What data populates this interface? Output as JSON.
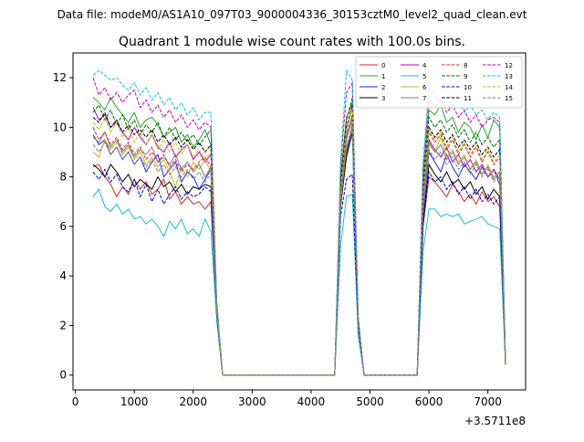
{
  "figure": {
    "suptitle": "Data file: modeM0/AS1A10_097T03_9000004336_30153cztM0_level2_quad_clean.evt",
    "offset_label": "+3.5711e8"
  },
  "chart_data": {
    "type": "line",
    "title": "Quadrant 1 module wise count rates with 100.0s bins.",
    "xlabel": "",
    "ylabel": "",
    "xlim": [
      -40,
      7640
    ],
    "ylim": [
      -0.6,
      13.0
    ],
    "xticks": [
      0,
      1000,
      2000,
      3000,
      4000,
      5000,
      6000,
      7000
    ],
    "yticks": [
      0,
      2,
      4,
      6,
      8,
      10,
      12
    ],
    "grid": false,
    "legend": {
      "placement": "top-right",
      "columns": 4
    },
    "x": [
      300,
      400,
      500,
      600,
      700,
      800,
      900,
      1000,
      1100,
      1200,
      1300,
      1400,
      1500,
      1600,
      1700,
      1800,
      1900,
      2000,
      2100,
      2200,
      2300,
      2400,
      2500,
      2600,
      2700,
      2800,
      2900,
      3000,
      3100,
      3200,
      3300,
      3400,
      3500,
      3600,
      3700,
      3800,
      3900,
      4000,
      4100,
      4200,
      4300,
      4400,
      4500,
      4600,
      4700,
      4800,
      4900,
      5000,
      5100,
      5200,
      5300,
      5400,
      5500,
      5600,
      5700,
      5800,
      5900,
      6000,
      6100,
      6200,
      6300,
      6400,
      6500,
      6600,
      6700,
      6800,
      6900,
      7000,
      7100,
      7200,
      7300
    ],
    "series": [
      {
        "name": "0",
        "color": "#d62728",
        "dash": "solid",
        "values": [
          8.4,
          8.5,
          8.0,
          7.7,
          7.2,
          7.6,
          7.3,
          7.9,
          7.5,
          7.8,
          7.3,
          7.5,
          7.9,
          7.1,
          7.4,
          6.9,
          7.2,
          6.9,
          7.0,
          6.7,
          7.0,
          2.4,
          0,
          0,
          0,
          0,
          0,
          0,
          0,
          0,
          0,
          0,
          0,
          0,
          0,
          0,
          0,
          0,
          0,
          0,
          0,
          0,
          7.3,
          8.9,
          10.2,
          2.0,
          0,
          0,
          0,
          0,
          0,
          0,
          0,
          0,
          0,
          0,
          6.0,
          8.0,
          7.8,
          7.5,
          7.2,
          7.7,
          7.4,
          7.0,
          7.3,
          6.9,
          7.4,
          7.0,
          7.2,
          6.8,
          0.5
        ]
      },
      {
        "name": "1",
        "color": "#2ca02c",
        "dash": "solid",
        "values": [
          11.2,
          11.0,
          10.7,
          11.2,
          10.8,
          10.5,
          10.2,
          10.6,
          10.0,
          10.3,
          10.4,
          10.1,
          9.6,
          9.8,
          10.0,
          9.4,
          9.7,
          9.2,
          9.5,
          9.9,
          9.3,
          2.8,
          0,
          0,
          0,
          0,
          0,
          0,
          0,
          0,
          0,
          0,
          0,
          0,
          0,
          0,
          0,
          0,
          0,
          0,
          0,
          0,
          8.0,
          10.4,
          11.0,
          2.1,
          0,
          0,
          0,
          0,
          0,
          0,
          0,
          0,
          0,
          0,
          8.0,
          10.7,
          10.5,
          10.9,
          10.2,
          10.4,
          9.8,
          10.2,
          10.0,
          9.5,
          10.1,
          9.6,
          10.3,
          10.0,
          0.5
        ]
      },
      {
        "name": "2",
        "color": "#1f1fff",
        "dash": "solid",
        "values": [
          9.7,
          9.3,
          9.5,
          8.9,
          9.2,
          8.7,
          9.0,
          8.5,
          8.8,
          8.2,
          8.6,
          8.9,
          8.0,
          8.3,
          8.6,
          7.8,
          8.2,
          8.0,
          7.5,
          7.9,
          8.3,
          2.5,
          0,
          0,
          0,
          0,
          0,
          0,
          0,
          0,
          0,
          0,
          0,
          0,
          0,
          0,
          0,
          0,
          0,
          0,
          0,
          0,
          6.8,
          9.0,
          10.0,
          2.0,
          0,
          0,
          0,
          0,
          0,
          0,
          0,
          0,
          0,
          0,
          6.6,
          9.0,
          8.6,
          8.2,
          8.9,
          8.4,
          8.0,
          8.5,
          8.2,
          7.9,
          8.4,
          8.0,
          8.3,
          7.7,
          0.4
        ]
      },
      {
        "name": "3",
        "color": "#000000",
        "dash": "solid",
        "values": [
          8.5,
          8.3,
          8.0,
          8.5,
          8.2,
          7.8,
          8.1,
          7.6,
          7.9,
          7.7,
          7.5,
          8.0,
          7.6,
          7.8,
          7.4,
          7.7,
          7.3,
          7.6,
          7.5,
          7.7,
          7.6,
          2.4,
          0,
          0,
          0,
          0,
          0,
          0,
          0,
          0,
          0,
          0,
          0,
          0,
          0,
          0,
          0,
          0,
          0,
          0,
          0,
          0,
          6.8,
          8.8,
          9.8,
          2.0,
          0,
          0,
          0,
          0,
          0,
          0,
          0,
          0,
          0,
          0,
          6.2,
          8.5,
          8.1,
          7.8,
          8.2,
          7.7,
          7.9,
          7.5,
          7.8,
          7.3,
          7.6,
          7.1,
          7.5,
          7.2,
          0.4
        ]
      },
      {
        "name": "4",
        "color": "#bf00bf",
        "dash": "solid",
        "values": [
          10.8,
          10.3,
          10.5,
          10.0,
          10.2,
          9.8,
          9.5,
          10.0,
          9.6,
          9.3,
          9.7,
          9.2,
          9.0,
          9.4,
          8.8,
          9.1,
          9.3,
          8.7,
          9.0,
          8.6,
          8.9,
          2.6,
          0,
          0,
          0,
          0,
          0,
          0,
          0,
          0,
          0,
          0,
          0,
          0,
          0,
          0,
          0,
          0,
          0,
          0,
          0,
          0,
          7.3,
          9.6,
          10.5,
          2.0,
          0,
          0,
          0,
          0,
          0,
          0,
          0,
          0,
          0,
          0,
          7.0,
          9.5,
          9.1,
          8.8,
          9.2,
          8.6,
          8.9,
          8.4,
          8.7,
          8.2,
          8.5,
          8.0,
          8.3,
          7.9,
          0.4
        ]
      },
      {
        "name": "5",
        "color": "#17becf",
        "dash": "solid",
        "values": [
          7.2,
          7.5,
          6.8,
          6.6,
          6.9,
          6.5,
          6.7,
          6.3,
          6.4,
          6.1,
          6.3,
          6.0,
          5.6,
          6.2,
          5.9,
          6.3,
          5.7,
          5.9,
          5.6,
          6.3,
          5.8,
          2.2,
          0,
          0,
          0,
          0,
          0,
          0,
          0,
          0,
          0,
          0,
          0,
          0,
          0,
          0,
          0,
          0,
          0,
          0,
          0,
          0,
          5.2,
          7.2,
          7.3,
          1.6,
          0,
          0,
          0,
          0,
          0,
          0,
          0,
          0,
          0,
          0,
          5.0,
          6.7,
          6.7,
          6.4,
          6.5,
          6.4,
          6.5,
          6.1,
          6.2,
          6.3,
          6.4,
          6.1,
          6.0,
          5.9,
          0.4
        ]
      },
      {
        "name": "6",
        "color": "#bcbd22",
        "dash": "solid",
        "values": [
          9.0,
          8.8,
          9.5,
          9.1,
          9.4,
          8.9,
          9.2,
          8.7,
          9.0,
          8.5,
          8.8,
          8.4,
          8.7,
          8.2,
          7.6,
          8.4,
          8.0,
          8.6,
          8.3,
          8.7,
          8.2,
          2.5,
          0,
          0,
          0,
          0,
          0,
          0,
          0,
          0,
          0,
          0,
          0,
          0,
          0,
          0,
          0,
          0,
          0,
          0,
          0,
          0,
          7.0,
          9.2,
          10.0,
          2.0,
          0,
          0,
          0,
          0,
          0,
          0,
          0,
          0,
          0,
          0,
          6.8,
          9.3,
          9.0,
          9.6,
          8.8,
          9.1,
          8.6,
          8.9,
          8.3,
          8.7,
          8.1,
          8.5,
          8.0,
          8.2,
          0.4
        ]
      },
      {
        "name": "7",
        "color": "#7f7f7f",
        "dash": "solid",
        "values": [
          9.6,
          9.4,
          9.8,
          9.2,
          9.5,
          9.0,
          9.3,
          8.8,
          9.1,
          8.9,
          9.2,
          8.6,
          8.8,
          8.5,
          8.9,
          8.3,
          8.6,
          8.2,
          8.5,
          8.0,
          8.4,
          2.5,
          0,
          0,
          0,
          0,
          0,
          0,
          0,
          0,
          0,
          0,
          0,
          0,
          0,
          0,
          0,
          0,
          0,
          0,
          0,
          0,
          7.2,
          9.5,
          10.4,
          2.0,
          0,
          0,
          0,
          0,
          0,
          0,
          0,
          0,
          0,
          0,
          6.9,
          9.4,
          9.0,
          9.3,
          8.7,
          9.0,
          8.5,
          8.8,
          8.3,
          8.6,
          8.1,
          8.4,
          7.9,
          8.2,
          0.4
        ]
      },
      {
        "name": "8",
        "color": "#d62728",
        "dash": "dashed",
        "values": [
          10.0,
          9.5,
          9.8,
          9.3,
          9.6,
          9.1,
          9.4,
          8.9,
          9.2,
          8.7,
          9.0,
          8.6,
          8.9,
          8.4,
          8.7,
          8.2,
          8.5,
          8.3,
          8.6,
          8.8,
          8.4,
          2.6,
          0,
          0,
          0,
          0,
          0,
          0,
          0,
          0,
          0,
          0,
          0,
          0,
          0,
          0,
          0,
          0,
          0,
          0,
          0,
          0,
          7.4,
          9.8,
          10.9,
          2.1,
          0,
          0,
          0,
          0,
          0,
          0,
          0,
          0,
          0,
          0,
          7.2,
          9.8,
          9.4,
          9.7,
          9.1,
          9.5,
          8.9,
          9.3,
          8.8,
          9.2,
          8.6,
          9.0,
          8.5,
          8.8,
          0.4
        ]
      },
      {
        "name": "9",
        "color": "#006400",
        "dash": "dashed",
        "values": [
          10.6,
          10.9,
          10.3,
          10.7,
          10.1,
          10.5,
          9.9,
          10.3,
          9.7,
          10.1,
          9.8,
          10.2,
          9.6,
          10.0,
          9.5,
          9.8,
          9.4,
          9.7,
          9.3,
          9.6,
          9.9,
          2.8,
          0,
          0,
          0,
          0,
          0,
          0,
          0,
          0,
          0,
          0,
          0,
          0,
          0,
          0,
          0,
          0,
          0,
          0,
          0,
          0,
          7.9,
          10.3,
          11.2,
          2.1,
          0,
          0,
          0,
          0,
          0,
          0,
          0,
          0,
          0,
          0,
          7.7,
          10.4,
          10.0,
          10.3,
          9.8,
          10.1,
          9.6,
          9.9,
          9.4,
          9.8,
          9.3,
          9.6,
          9.2,
          9.5,
          0.5
        ]
      },
      {
        "name": "10",
        "color": "#0000cd",
        "dash": "dashed",
        "values": [
          8.2,
          7.9,
          8.3,
          7.8,
          8.1,
          7.6,
          7.4,
          7.9,
          7.2,
          7.7,
          7.0,
          7.5,
          6.9,
          7.3,
          7.6,
          7.1,
          7.4,
          7.2,
          7.3,
          7.6,
          7.4,
          2.3,
          0,
          0,
          0,
          0,
          0,
          0,
          0,
          0,
          0,
          0,
          0,
          0,
          0,
          0,
          0,
          0,
          0,
          0,
          0,
          0,
          6.4,
          7.9,
          8.1,
          1.8,
          0,
          0,
          0,
          0,
          0,
          0,
          0,
          0,
          0,
          0,
          6.0,
          8.2,
          7.8,
          8.0,
          7.5,
          7.8,
          7.3,
          7.6,
          7.1,
          7.5,
          7.0,
          7.3,
          6.9,
          7.2,
          0.4
        ]
      },
      {
        "name": "11",
        "color": "#000000",
        "dash": "dashed",
        "values": [
          10.4,
          10.2,
          10.6,
          10.0,
          10.3,
          9.8,
          10.1,
          9.7,
          9.9,
          9.6,
          9.9,
          9.4,
          9.7,
          9.3,
          9.6,
          9.2,
          9.5,
          9.1,
          9.4,
          9.0,
          9.3,
          2.7,
          0,
          0,
          0,
          0,
          0,
          0,
          0,
          0,
          0,
          0,
          0,
          0,
          0,
          0,
          0,
          0,
          0,
          0,
          0,
          0,
          7.6,
          10.0,
          10.9,
          2.1,
          0,
          0,
          0,
          0,
          0,
          0,
          0,
          0,
          0,
          0,
          7.4,
          10.0,
          9.6,
          9.9,
          9.4,
          9.7,
          9.2,
          9.5,
          9.1,
          9.4,
          8.9,
          9.2,
          8.8,
          9.1,
          0.4
        ]
      },
      {
        "name": "12",
        "color": "#bf00bf",
        "dash": "dashed",
        "values": [
          12.0,
          11.3,
          11.6,
          11.1,
          11.4,
          11.0,
          11.3,
          11.5,
          10.8,
          11.1,
          10.6,
          10.9,
          10.4,
          10.7,
          10.2,
          10.5,
          10.0,
          10.3,
          9.9,
          10.2,
          10.0,
          2.9,
          0,
          0,
          0,
          0,
          0,
          0,
          0,
          0,
          0,
          0,
          0,
          0,
          0,
          0,
          0,
          0,
          0,
          0,
          0,
          0,
          8.4,
          11.4,
          11.8,
          2.3,
          0,
          0,
          0,
          0,
          0,
          0,
          0,
          0,
          0,
          0,
          8.3,
          11.2,
          10.8,
          11.1,
          10.6,
          10.9,
          10.4,
          10.7,
          10.2,
          10.5,
          10.0,
          10.3,
          10.4,
          10.2,
          0.5
        ]
      },
      {
        "name": "13",
        "color": "#17becf",
        "dash": "dashed",
        "values": [
          12.1,
          12.3,
          12.1,
          11.9,
          12.0,
          11.7,
          11.5,
          11.8,
          11.3,
          11.6,
          11.1,
          11.4,
          10.9,
          11.2,
          10.7,
          11.0,
          10.5,
          10.8,
          10.3,
          10.6,
          10.6,
          3.0,
          0,
          0,
          0,
          0,
          0,
          0,
          0,
          0,
          0,
          0,
          0,
          0,
          0,
          0,
          0,
          0,
          0,
          0,
          0,
          0,
          8.6,
          12.3,
          11.9,
          2.4,
          0,
          0,
          0,
          0,
          0,
          0,
          0,
          0,
          0,
          0,
          8.6,
          11.6,
          11.3,
          11.0,
          11.3,
          10.8,
          11.1,
          10.6,
          10.9,
          10.5,
          10.7,
          10.3,
          10.6,
          10.4,
          0.5
        ]
      },
      {
        "name": "14",
        "color": "#bcbd22",
        "dash": "dashed",
        "values": [
          10.2,
          9.9,
          10.4,
          9.8,
          10.2,
          9.6,
          10.0,
          9.4,
          9.8,
          9.3,
          9.7,
          9.1,
          9.5,
          9.0,
          9.4,
          8.9,
          9.3,
          8.8,
          9.1,
          8.7,
          9.0,
          2.6,
          0,
          0,
          0,
          0,
          0,
          0,
          0,
          0,
          0,
          0,
          0,
          0,
          0,
          0,
          0,
          0,
          0,
          0,
          0,
          0,
          7.5,
          9.9,
          10.8,
          2.0,
          0,
          0,
          0,
          0,
          0,
          0,
          0,
          0,
          0,
          0,
          7.3,
          9.9,
          9.5,
          9.8,
          9.2,
          9.6,
          9.0,
          9.4,
          8.9,
          9.3,
          8.7,
          9.1,
          8.6,
          8.9,
          0.4
        ]
      },
      {
        "name": "15",
        "color": "#7f7f7f",
        "dash": "dashed",
        "values": [
          9.3,
          9.0,
          9.4,
          8.9,
          9.2,
          8.7,
          9.0,
          8.5,
          8.8,
          8.4,
          8.7,
          8.2,
          8.5,
          8.1,
          8.4,
          8.0,
          8.3,
          7.9,
          8.2,
          7.8,
          8.1,
          2.4,
          0,
          0,
          0,
          0,
          0,
          0,
          0,
          0,
          0,
          0,
          0,
          0,
          0,
          0,
          0,
          0,
          0,
          0,
          0,
          0,
          6.9,
          9.2,
          10.1,
          1.9,
          0,
          0,
          0,
          0,
          0,
          0,
          0,
          0,
          0,
          0,
          6.7,
          9.1,
          8.7,
          9.0,
          8.5,
          8.8,
          8.3,
          8.6,
          8.1,
          8.5,
          8.0,
          8.3,
          7.8,
          8.1,
          0.4
        ]
      }
    ]
  }
}
